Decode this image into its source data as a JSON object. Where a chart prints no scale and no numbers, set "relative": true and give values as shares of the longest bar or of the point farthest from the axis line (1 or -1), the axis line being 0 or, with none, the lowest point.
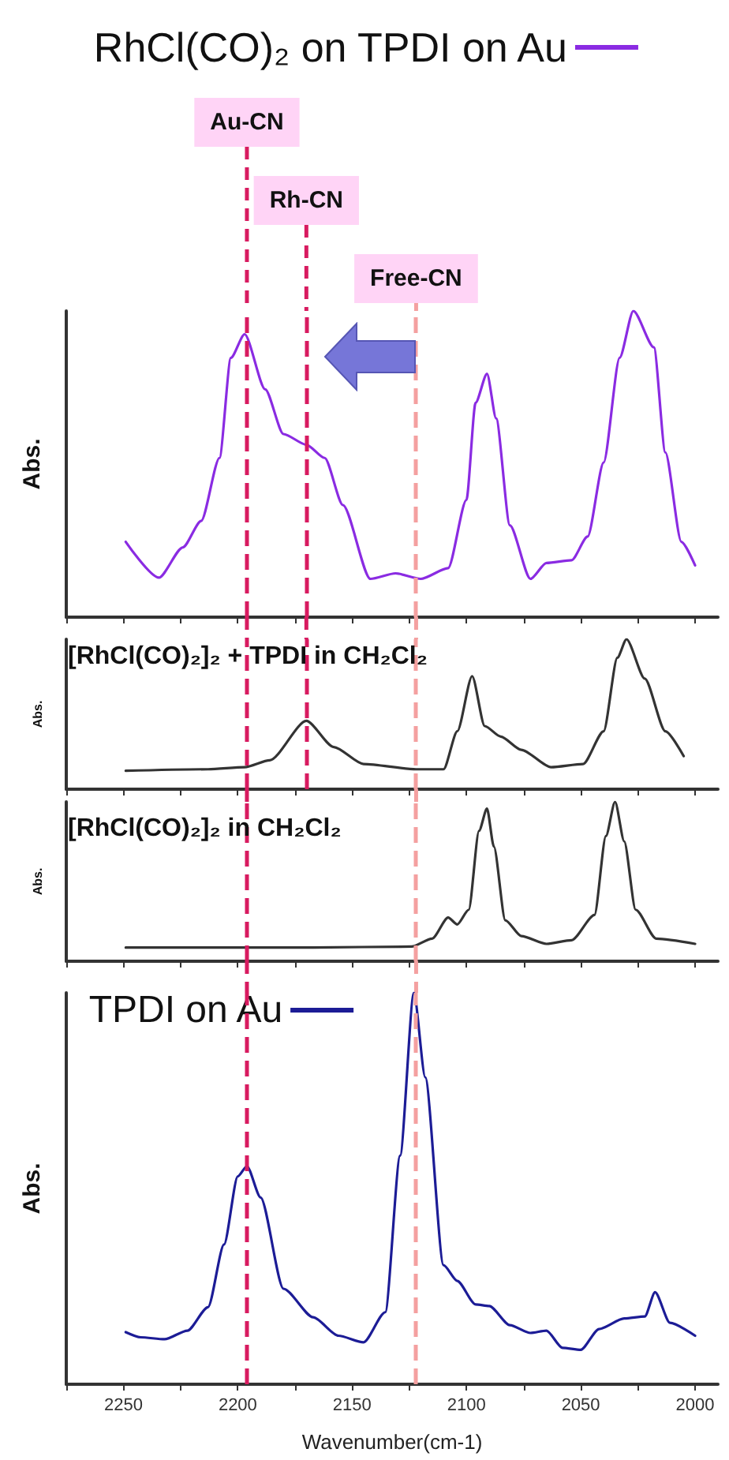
{
  "chart_data": [
    {
      "type": "line",
      "ylabel": "Abs.",
      "xlim": [
        2275,
        1990
      ],
      "xticks": [
        {
          "value": 2275,
          "label": null
        },
        {
          "value": 2250,
          "label": null
        },
        {
          "value": 2225,
          "label": null
        },
        {
          "value": 2200,
          "label": null
        },
        {
          "value": 2175,
          "label": null
        },
        {
          "value": 2150,
          "label": null
        },
        {
          "value": 2125,
          "label": null
        },
        {
          "value": 2100,
          "label": null
        },
        {
          "value": 2075,
          "label": null
        },
        {
          "value": 2050,
          "label": null
        },
        {
          "value": 2025,
          "label": null
        },
        {
          "value": 2000,
          "label": null
        }
      ],
      "tick_labels": false,
      "relative": true,
      "legend": "top",
      "marker": "none",
      "line_style": "solid",
      "series": [
        {
          "name": "RhCl(CO)₂ on TPDI on Au",
          "color": "#8a2be2",
          "x": [
            2249,
            2234.5,
            2224,
            2216,
            2208,
            2203,
            2197,
            2188,
            2180,
            2170,
            2162,
            2154,
            2142,
            2131,
            2120,
            2108,
            2100,
            2096,
            2091,
            2087,
            2081,
            2072,
            2065,
            2054,
            2047,
            2040,
            2033,
            2027,
            2018,
            2013,
            2006,
            2000
          ],
          "values": [
            0.246,
            0.129,
            0.228,
            0.314,
            0.52,
            0.847,
            0.924,
            0.744,
            0.598,
            0.563,
            0.52,
            0.366,
            0.125,
            0.143,
            0.125,
            0.16,
            0.383,
            0.7,
            0.795,
            0.649,
            0.3,
            0.125,
            0.177,
            0.186,
            0.263,
            0.505,
            0.847,
            1.0,
            0.881,
            0.538,
            0.246,
            0.169
          ]
        }
      ],
      "ref_lines": [
        {
          "axis": "x",
          "value": 2196,
          "label": "Au-CN",
          "color": "#d81b60",
          "line_style": "dashed"
        },
        {
          "axis": "x",
          "value": 2170,
          "label": "Rh-CN",
          "color": "#d81b60",
          "line_style": "dashed"
        },
        {
          "axis": "x",
          "value": 2122,
          "label": "Free-CN",
          "color": "#f4a0a0",
          "line_style": "dashed"
        }
      ]
    },
    {
      "type": "line",
      "title": "[RhCl(CO)₂]₂ + TPDI in CH₂Cl₂",
      "ylabel": "Abs.",
      "xlim": [
        2275,
        1990
      ],
      "xticks": [
        {
          "value": 2275,
          "label": null
        },
        {
          "value": 2250,
          "label": null
        },
        {
          "value": 2225,
          "label": null
        },
        {
          "value": 2200,
          "label": null
        },
        {
          "value": 2175,
          "label": null
        },
        {
          "value": 2150,
          "label": null
        },
        {
          "value": 2125,
          "label": null
        },
        {
          "value": 2100,
          "label": null
        },
        {
          "value": 2075,
          "label": null
        },
        {
          "value": 2050,
          "label": null
        },
        {
          "value": 2025,
          "label": null
        },
        {
          "value": 2000,
          "label": null
        }
      ],
      "tick_labels": false,
      "relative": true,
      "marker": "none",
      "line_style": "solid",
      "series": [
        {
          "color": "#333333",
          "x": [
            2249,
            2213,
            2197,
            2186,
            2170,
            2158,
            2145,
            2122,
            2110,
            2104,
            2097.5,
            2092,
            2085,
            2076,
            2063,
            2049,
            2040,
            2034,
            2030,
            2022,
            2013,
            2005
          ],
          "values": [
            0.123,
            0.133,
            0.147,
            0.193,
            0.456,
            0.281,
            0.168,
            0.133,
            0.133,
            0.386,
            0.754,
            0.421,
            0.351,
            0.263,
            0.147,
            0.168,
            0.386,
            0.877,
            1.0,
            0.737,
            0.386,
            0.221
          ]
        }
      ],
      "ref_lines": [
        {
          "axis": "x",
          "value": 2196,
          "color": "#d81b60",
          "line_style": "dashed"
        },
        {
          "axis": "x",
          "value": 2170,
          "color": "#d81b60",
          "line_style": "dashed"
        },
        {
          "axis": "x",
          "value": 2122,
          "color": "#f4a0a0",
          "line_style": "dashed"
        }
      ]
    },
    {
      "type": "line",
      "title": "[RhCl(CO)₂]₂ in CH₂Cl₂",
      "ylabel": "Abs.",
      "xlim": [
        2275,
        1990
      ],
      "xticks": [
        {
          "value": 2275,
          "label": null
        },
        {
          "value": 2250,
          "label": null
        },
        {
          "value": 2225,
          "label": null
        },
        {
          "value": 2200,
          "label": null
        },
        {
          "value": 2175,
          "label": null
        },
        {
          "value": 2150,
          "label": null
        },
        {
          "value": 2125,
          "label": null
        },
        {
          "value": 2100,
          "label": null
        },
        {
          "value": 2075,
          "label": null
        },
        {
          "value": 2050,
          "label": null
        },
        {
          "value": 2025,
          "label": null
        },
        {
          "value": 2000,
          "label": null
        }
      ],
      "tick_labels": false,
      "relative": true,
      "marker": "none",
      "line_style": "solid",
      "series": [
        {
          "color": "#333333",
          "x": [
            2249,
            2167,
            2124,
            2115,
            2108,
            2104,
            2099,
            2094.5,
            2091,
            2088,
            2083,
            2076,
            2065,
            2054,
            2044,
            2039,
            2035,
            2031,
            2026,
            2017,
            2000
          ],
          "values": [
            0.086,
            0.086,
            0.092,
            0.142,
            0.274,
            0.231,
            0.323,
            0.818,
            0.957,
            0.719,
            0.257,
            0.158,
            0.109,
            0.132,
            0.29,
            0.785,
            1.0,
            0.752,
            0.323,
            0.142,
            0.109
          ]
        }
      ],
      "ref_lines": [
        {
          "axis": "x",
          "value": 2196,
          "color": "#d81b60",
          "line_style": "dashed"
        },
        {
          "axis": "x",
          "value": 2122,
          "color": "#f4a0a0",
          "line_style": "dashed"
        }
      ]
    },
    {
      "type": "line",
      "xlabel": "Wavenumber(cm-1)",
      "ylabel": "Abs.",
      "xlim": [
        2275,
        1990
      ],
      "xticks": [
        {
          "value": 2275,
          "label": null
        },
        2250,
        {
          "value": 2225,
          "label": null
        },
        2200,
        {
          "value": 2175,
          "label": null
        },
        2150,
        {
          "value": 2125,
          "label": null
        },
        2100,
        {
          "value": 2075,
          "label": null
        },
        2050,
        {
          "value": 2025,
          "label": null
        },
        2000
      ],
      "tick_labels": "x",
      "relative": true,
      "legend": "top left",
      "marker": "none",
      "line_style": "solid",
      "series": [
        {
          "name": "TPDI on Au",
          "color": "#1c1c96",
          "x": [
            2249,
            2242.5,
            2232,
            2222,
            2213,
            2206,
            2200,
            2196,
            2190,
            2180,
            2167,
            2156,
            2145,
            2135.5,
            2129,
            2123,
            2118,
            2110,
            2104,
            2096,
            2090,
            2081,
            2072,
            2065,
            2058,
            2050,
            2042,
            2031,
            2022,
            2017.5,
            2011,
            2000
          ],
          "values": [
            0.133,
            0.12,
            0.115,
            0.137,
            0.197,
            0.357,
            0.531,
            0.557,
            0.477,
            0.244,
            0.171,
            0.124,
            0.107,
            0.184,
            0.584,
            1.0,
            0.784,
            0.304,
            0.264,
            0.204,
            0.2,
            0.151,
            0.131,
            0.137,
            0.093,
            0.088,
            0.141,
            0.168,
            0.173,
            0.235,
            0.157,
            0.124
          ]
        }
      ],
      "ref_lines": [
        {
          "axis": "x",
          "value": 2196,
          "color": "#d81b60",
          "line_style": "dashed"
        },
        {
          "axis": "x",
          "value": 2122,
          "color": "#f4a0a0",
          "line_style": "dashed"
        }
      ]
    }
  ]
}
